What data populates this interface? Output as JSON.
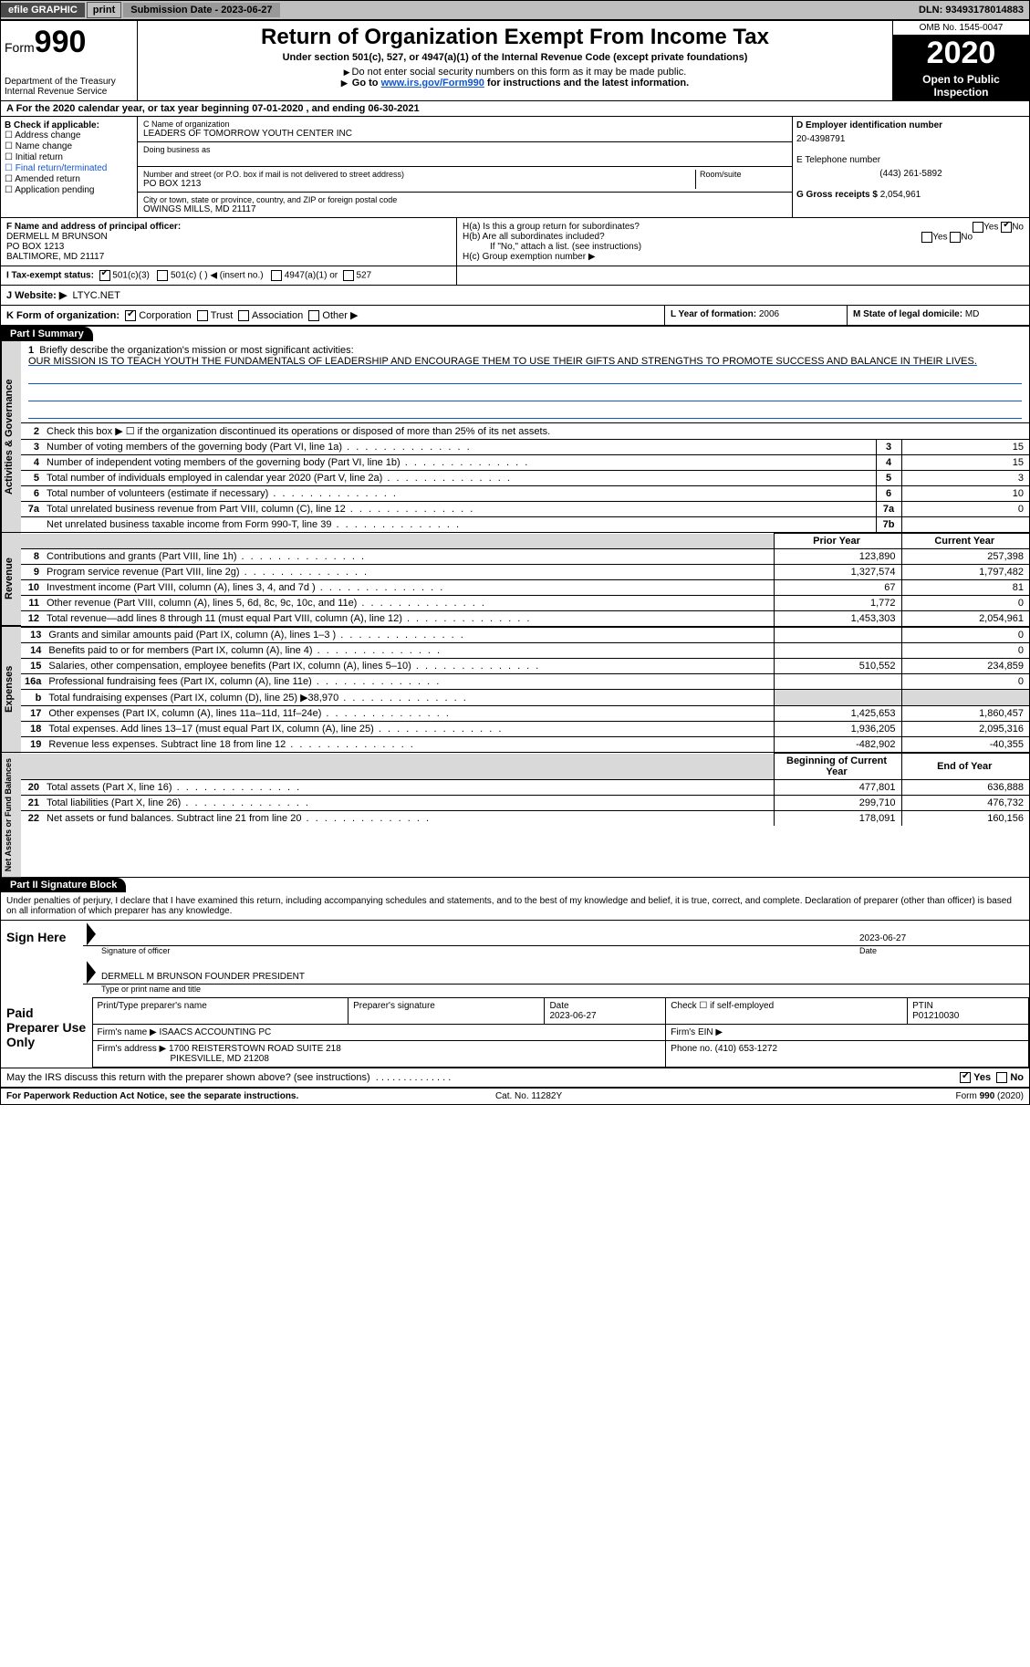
{
  "top": {
    "efile": "efile GRAPHIC",
    "print": "print",
    "subDateLabel": "Submission Date - 2023-06-27",
    "dln": "DLN: 93493178014883"
  },
  "header": {
    "formWord": "Form",
    "formNum": "990",
    "dept": "Department of the Treasury\nInternal Revenue Service",
    "title": "Return of Organization Exempt From Income Tax",
    "sub1": "Under section 501(c), 527, or 4947(a)(1) of the Internal Revenue Code (except private foundations)",
    "sub2": "Do not enter social security numbers on this form as it may be made public.",
    "sub3_pre": "Go to ",
    "sub3_link": "www.irs.gov/Form990",
    "sub3_post": " for instructions and the latest information.",
    "omb": "OMB No. 1545-0047",
    "year": "2020",
    "otp": "Open to Public Inspection"
  },
  "rowA": "A For the 2020 calendar year, or tax year beginning 07-01-2020   , and ending 06-30-2021",
  "colB": {
    "label": "B Check if applicable:",
    "addr": "Address change",
    "name": "Name change",
    "init": "Initial return",
    "final": "Final return/terminated",
    "amend": "Amended return",
    "app": "Application pending"
  },
  "colC": {
    "nameLbl": "C Name of organization",
    "name": "LEADERS OF TOMORROW YOUTH CENTER INC",
    "dbaLbl": "Doing business as",
    "addrLbl": "Number and street (or P.O. box if mail is not delivered to street address)",
    "room": "Room/suite",
    "addr": "PO BOX 1213",
    "cityLbl": "City or town, state or province, country, and ZIP or foreign postal code",
    "city": "OWINGS MILLS, MD  21117"
  },
  "colE": {
    "einLbl": "D Employer identification number",
    "ein": "20-4398791",
    "telLbl": "E Telephone number",
    "tel": "(443) 261-5892",
    "grossLbl": "G Gross receipts $",
    "gross": "2,054,961"
  },
  "f": {
    "lbl": "F Name and address of principal officer:",
    "n": "DERMELL M BRUNSON",
    "a1": "PO BOX 1213",
    "a2": "BALTIMORE, MD  21117"
  },
  "h": {
    "a": "H(a)  Is this a group return for subordinates?",
    "b": "H(b)  Are all subordinates included?",
    "note": "If \"No,\" attach a list. (see instructions)",
    "c": "H(c)  Group exemption number ▶",
    "yes": "Yes",
    "no": "No"
  },
  "i": {
    "lbl": "I   Tax-exempt status:",
    "o1": "501(c)(3)",
    "o2": "501(c) (  ) ◀ (insert no.)",
    "o3": "4947(a)(1) or",
    "o4": "527"
  },
  "j": {
    "lbl": "J  Website: ▶",
    "val": "LTYC.NET"
  },
  "k": {
    "lbl": "K Form of organization:",
    "corp": "Corporation",
    "trust": "Trust",
    "assoc": "Association",
    "other": "Other ▶",
    "yearLbl": "L Year of formation:",
    "year": "2006",
    "domLbl": "M State of legal domicile:",
    "dom": "MD"
  },
  "part1": {
    "hdr": "Part I     Summary",
    "tabs": {
      "gov": "Activities & Governance",
      "rev": "Revenue",
      "exp": "Expenses",
      "net": "Net Assets or Fund Balances"
    },
    "l1": "Briefly describe the organization's mission or most significant activities:",
    "mission": "OUR MISSION IS TO TEACH YOUTH THE FUNDAMENTALS OF LEADERSHIP AND ENCOURAGE THEM TO USE THEIR GIFTS AND STRENGTHS TO PROMOTE SUCCESS AND BALANCE IN THEIR LIVES.",
    "l2": "Check this box ▶ ☐  if the organization discontinued its operations or disposed of more than 25% of its net assets.",
    "rows_single": [
      {
        "n": "3",
        "t": "Number of voting members of the governing body (Part VI, line 1a)",
        "b": "3",
        "v": "15"
      },
      {
        "n": "4",
        "t": "Number of independent voting members of the governing body (Part VI, line 1b)",
        "b": "4",
        "v": "15"
      },
      {
        "n": "5",
        "t": "Total number of individuals employed in calendar year 2020 (Part V, line 2a)",
        "b": "5",
        "v": "3"
      },
      {
        "n": "6",
        "t": "Total number of volunteers (estimate if necessary)",
        "b": "6",
        "v": "10"
      },
      {
        "n": "7a",
        "t": "Total unrelated business revenue from Part VIII, column (C), line 12",
        "b": "7a",
        "v": "0"
      },
      {
        "n": "",
        "t": "Net unrelated business taxable income from Form 990-T, line 39",
        "b": "7b",
        "v": ""
      }
    ],
    "pyh": "Prior Year",
    "cyh": "Current Year",
    "rows_py": [
      {
        "tab": "rev",
        "n": "8",
        "t": "Contributions and grants (Part VIII, line 1h)",
        "py": "123,890",
        "cy": "257,398"
      },
      {
        "tab": "rev",
        "n": "9",
        "t": "Program service revenue (Part VIII, line 2g)",
        "py": "1,327,574",
        "cy": "1,797,482"
      },
      {
        "tab": "rev",
        "n": "10",
        "t": "Investment income (Part VIII, column (A), lines 3, 4, and 7d )",
        "py": "67",
        "cy": "81"
      },
      {
        "tab": "rev",
        "n": "11",
        "t": "Other revenue (Part VIII, column (A), lines 5, 6d, 8c, 9c, 10c, and 11e)",
        "py": "1,772",
        "cy": "0"
      },
      {
        "tab": "rev",
        "n": "12",
        "t": "Total revenue—add lines 8 through 11 (must equal Part VIII, column (A), line 12)",
        "py": "1,453,303",
        "cy": "2,054,961"
      },
      {
        "tab": "exp",
        "n": "13",
        "t": "Grants and similar amounts paid (Part IX, column (A), lines 1–3 )",
        "py": "",
        "cy": "0"
      },
      {
        "tab": "exp",
        "n": "14",
        "t": "Benefits paid to or for members (Part IX, column (A), line 4)",
        "py": "",
        "cy": "0"
      },
      {
        "tab": "exp",
        "n": "15",
        "t": "Salaries, other compensation, employee benefits (Part IX, column (A), lines 5–10)",
        "py": "510,552",
        "cy": "234,859"
      },
      {
        "tab": "exp",
        "n": "16a",
        "t": "Professional fundraising fees (Part IX, column (A), line 11e)",
        "py": "",
        "cy": "0"
      },
      {
        "tab": "exp",
        "n": "b",
        "t": "Total fundraising expenses (Part IX, column (D), line 25) ▶38,970",
        "py": "GREY",
        "cy": "GREY"
      },
      {
        "tab": "exp",
        "n": "17",
        "t": "Other expenses (Part IX, column (A), lines 11a–11d, 11f–24e)",
        "py": "1,425,653",
        "cy": "1,860,457"
      },
      {
        "tab": "exp",
        "n": "18",
        "t": "Total expenses. Add lines 13–17 (must equal Part IX, column (A), line 25)",
        "py": "1,936,205",
        "cy": "2,095,316"
      },
      {
        "tab": "exp",
        "n": "19",
        "t": "Revenue less expenses. Subtract line 18 from line 12",
        "py": "-482,902",
        "cy": "-40,355"
      }
    ],
    "bch": "Beginning of Current Year",
    "eyh": "End of Year",
    "rows_net": [
      {
        "n": "20",
        "t": "Total assets (Part X, line 16)",
        "py": "477,801",
        "cy": "636,888"
      },
      {
        "n": "21",
        "t": "Total liabilities (Part X, line 26)",
        "py": "299,710",
        "cy": "476,732"
      },
      {
        "n": "22",
        "t": "Net assets or fund balances. Subtract line 21 from line 20",
        "py": "178,091",
        "cy": "160,156"
      }
    ]
  },
  "part2": {
    "hdr": "Part II     Signature Block",
    "penalty": "Under penalties of perjury, I declare that I have examined this return, including accompanying schedules and statements, and to the best of my knowledge and belief, it is true, correct, and complete. Declaration of preparer (other than officer) is based on all information of which preparer has any knowledge.",
    "signHere": "Sign Here",
    "sigOf": "Signature of officer",
    "dateLbl": "Date",
    "date": "2023-06-27",
    "name": "DERMELL M BRUNSON  FOUNDER PRESIDENT",
    "typeLbl": "Type or print name and title",
    "paid": "Paid Preparer Use Only",
    "h1": "Print/Type preparer's name",
    "h2": "Preparer's signature",
    "h3": "Date",
    "h3v": "2023-06-27",
    "h4": "Check ☐ if self-employed",
    "h5": "PTIN",
    "h5v": "P01210030",
    "firmName": "Firm's name  ▶",
    "firmNameV": "ISAACS ACCOUNTING PC",
    "firmEin": "Firm's EIN ▶",
    "firmAddr": "Firm's address ▶",
    "firmAddrV": "1700 REISTERSTOWN ROAD SUITE 218",
    "firmCity": "PIKESVILLE, MD  21208",
    "phone": "Phone no.",
    "phoneV": "(410) 653-1272",
    "may": "May the IRS discuss this return with the preparer shown above? (see instructions)",
    "mayYes": "Yes",
    "mayNo": "No"
  },
  "foot": {
    "l": "For Paperwork Reduction Act Notice, see the separate instructions.",
    "c": "Cat. No. 11282Y",
    "r": "Form 990 (2020)"
  }
}
